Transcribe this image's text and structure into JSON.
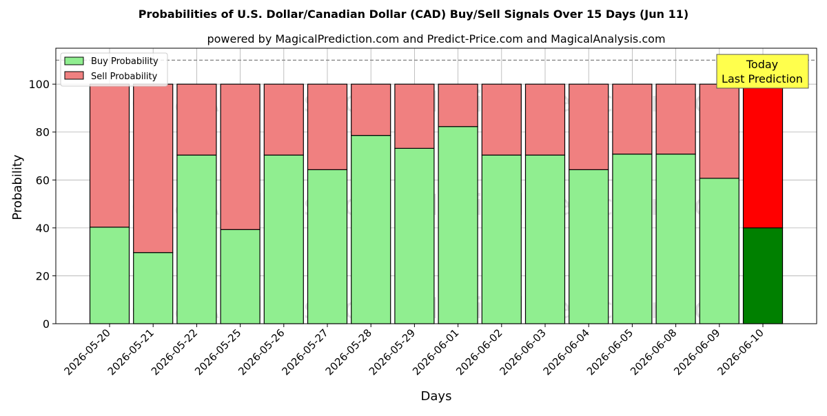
{
  "chart_data": {
    "type": "bar",
    "stacked": true,
    "title": "Probabilities of U.S. Dollar/Canadian Dollar (CAD) Buy/Sell Signals Over 15 Days (Jun 11)",
    "subtitle": "powered by MagicalPrediction.com and Predict-Price.com and MagicalAnalysis.com",
    "xlabel": "Days",
    "ylabel": "Probability",
    "ylim": [
      0,
      115
    ],
    "yticks": [
      0,
      20,
      40,
      60,
      80,
      100
    ],
    "reference_line": 110,
    "grid": true,
    "legend_position": "top-left",
    "categories": [
      "2026-05-20",
      "2026-05-21",
      "2026-05-22",
      "2026-05-25",
      "2026-05-26",
      "2026-05-27",
      "2026-05-28",
      "2026-05-29",
      "2026-06-01",
      "2026-06-02",
      "2026-06-03",
      "2026-06-04",
      "2026-06-05",
      "2026-06-08",
      "2026-06-09",
      "2026-06-10"
    ],
    "series": [
      {
        "name": "Buy Probability",
        "color": "#90ee90",
        "today_color": "#008000",
        "values": [
          40.3,
          29.7,
          70.4,
          39.3,
          70.4,
          64.3,
          78.6,
          73.2,
          82.3,
          70.4,
          70.4,
          64.3,
          70.8,
          70.8,
          60.7,
          40.0
        ]
      },
      {
        "name": "Sell Probability",
        "color": "#f08080",
        "today_color": "#ff0000",
        "values": [
          59.7,
          70.3,
          29.6,
          60.7,
          29.6,
          35.7,
          21.4,
          26.8,
          17.7,
          29.6,
          29.6,
          35.7,
          29.2,
          29.2,
          39.3,
          60.0
        ]
      }
    ],
    "annotation": {
      "line1": "Today",
      "line2": "Last Prediction",
      "background": "#ffff4d"
    },
    "watermarks": [
      "MagicalAnalysis.com",
      "MagicalPrediction.com"
    ]
  }
}
